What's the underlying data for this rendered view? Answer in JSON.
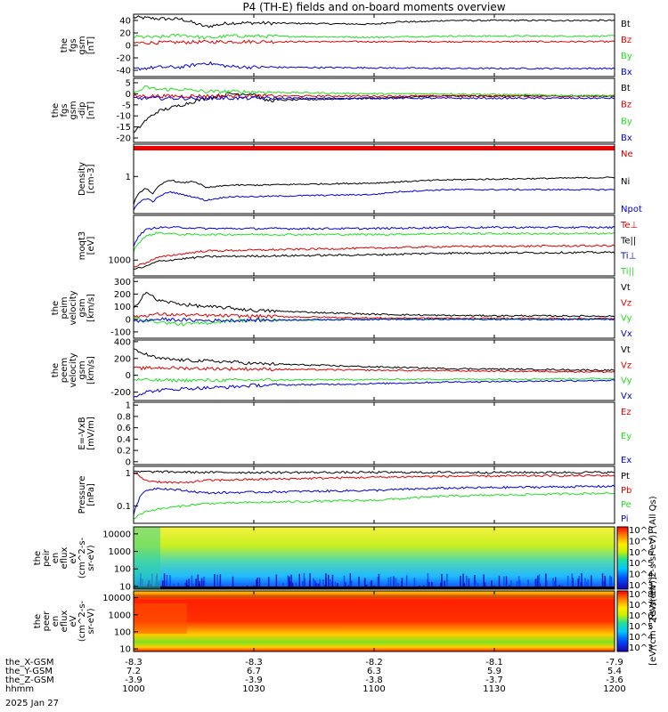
{
  "title": "P4 (TH-E) fields and on-board moments overview",
  "date": "2025 Jan 27",
  "colors": {
    "black": "#000000",
    "red": "#e00000",
    "green": "#22dd22",
    "blue": "#0000dd",
    "ne_red": "#cc0000"
  },
  "chart_data": [
    {
      "type": "line",
      "ylabel": [
        "the",
        "fgs",
        "gsm",
        "[nT]"
      ],
      "ylim": [
        -50,
        50
      ],
      "yticks": [
        40,
        20,
        0,
        -20,
        -40
      ],
      "legend": [
        "Bt",
        "Bz",
        "By",
        "Bx"
      ],
      "series": [
        {
          "name": "Bt",
          "color": "#000000",
          "x": [
            1000,
            1010,
            1020,
            1030,
            1040,
            1050,
            1100,
            1110,
            1120,
            1130,
            1140,
            1150,
            1200
          ],
          "y": [
            45,
            43,
            42,
            30,
            36,
            36,
            34,
            38,
            38,
            40,
            40,
            40,
            40
          ]
        },
        {
          "name": "Bz",
          "color": "#e00000",
          "x": [
            1000,
            1020,
            1040,
            1100,
            1130,
            1200
          ],
          "y": [
            4,
            5,
            6,
            6,
            6,
            6
          ]
        },
        {
          "name": "By",
          "color": "#22dd22",
          "x": [
            1000,
            1010,
            1020,
            1030,
            1040,
            1050,
            1100,
            1130,
            1200
          ],
          "y": [
            14,
            13,
            17,
            12,
            15,
            15,
            13,
            15,
            15
          ]
        },
        {
          "name": "Bx",
          "color": "#0000dd",
          "x": [
            1000,
            1010,
            1020,
            1030,
            1040,
            1050,
            1100,
            1130,
            1200
          ],
          "y": [
            -38,
            -35,
            -35,
            -28,
            -34,
            -35,
            -36,
            -37,
            -37
          ]
        }
      ]
    },
    {
      "type": "line",
      "ylabel": [
        "the",
        "fgs",
        "gsm",
        "-dip",
        "[nT]"
      ],
      "ylim": [
        -22,
        7
      ],
      "yticks": [
        5,
        0,
        -5,
        -10,
        -15,
        -20
      ],
      "legend": [
        "Bt",
        "Bz",
        "By",
        "Bx"
      ],
      "series": [
        {
          "name": "Bt",
          "color": "#000000",
          "x": [
            1000,
            1005,
            1010,
            1020,
            1030,
            1040,
            1050,
            1055,
            1100,
            1130,
            1200
          ],
          "y": [
            -18,
            -12,
            -8,
            -5,
            -2,
            0,
            0,
            -3,
            -2,
            -1,
            -1
          ]
        },
        {
          "name": "Bz",
          "color": "#e00000",
          "x": [
            1000,
            1010,
            1030,
            1100,
            1200
          ],
          "y": [
            -1,
            -1,
            -1,
            -1,
            -1
          ]
        },
        {
          "name": "By",
          "color": "#22dd22",
          "x": [
            1000,
            1005,
            1010,
            1020,
            1030,
            1040,
            1100,
            1130,
            1200
          ],
          "y": [
            0,
            3,
            2,
            2,
            1,
            1,
            0,
            0,
            -1
          ]
        },
        {
          "name": "Bx",
          "color": "#0000dd",
          "x": [
            1000,
            1030,
            1100,
            1200
          ],
          "y": [
            -2,
            -2,
            -2,
            -2
          ]
        }
      ]
    },
    {
      "type": "line",
      "ylabel": [
        "Density",
        "[cm-3]"
      ],
      "yscale": "log",
      "ylim": [
        0.02,
        30
      ],
      "yticks": [
        1
      ],
      "legend": [
        "Ne",
        "Ni",
        "Npot"
      ],
      "series": [
        {
          "name": "Ne",
          "color": "#cc0000",
          "x": [
            1000,
            1100,
            1200
          ],
          "y": [
            20,
            20,
            20
          ]
        },
        {
          "name": "Ni",
          "color": "#000000",
          "x": [
            1000,
            1005,
            1008,
            1015,
            1020,
            1025,
            1030,
            1040,
            1050,
            1100,
            1130,
            1200
          ],
          "y": [
            0.05,
            0.3,
            0.15,
            0.7,
            0.5,
            0.6,
            0.3,
            0.4,
            0.4,
            0.5,
            0.7,
            0.9
          ]
        },
        {
          "name": "Npot",
          "color": "#0000dd",
          "x": [
            1000,
            1005,
            1008,
            1015,
            1020,
            1030,
            1040,
            1050,
            1100,
            1110,
            1130,
            1200
          ],
          "y": [
            0.03,
            0.1,
            0.07,
            0.2,
            0.15,
            0.08,
            0.12,
            0.12,
            0.15,
            0.2,
            0.25,
            0.25
          ]
        }
      ]
    },
    {
      "type": "line",
      "ylabel": [
        "moqt3",
        "[eV]"
      ],
      "yscale": "log",
      "ylim": [
        300,
        30000
      ],
      "yticks": [
        1000
      ],
      "legend": [
        "Te⊥",
        "Te||",
        "Ti⊥",
        "Ti||"
      ],
      "series": [
        {
          "name": "Te⊥",
          "color": "#e00000",
          "x": [
            1000,
            1005,
            1010,
            1020,
            1030,
            1100,
            1130,
            1200
          ],
          "y": [
            600,
            800,
            1200,
            1600,
            2000,
            2500,
            2800,
            3000
          ]
        },
        {
          "name": "Te||",
          "color": "#000000",
          "x": [
            1000,
            1005,
            1010,
            1020,
            1030,
            1100,
            1130,
            1200
          ],
          "y": [
            500,
            600,
            900,
            1100,
            1300,
            1500,
            1700,
            1800
          ]
        },
        {
          "name": "Ti⊥",
          "color": "#0000dd",
          "x": [
            1000,
            1005,
            1010,
            1020,
            1030,
            1100,
            1130,
            1200
          ],
          "y": [
            3000,
            10000,
            12000,
            12000,
            11000,
            11000,
            12000,
            12000
          ]
        },
        {
          "name": "Ti||",
          "color": "#22dd22",
          "x": [
            1000,
            1005,
            1010,
            1020,
            1030,
            1100,
            1130,
            1200
          ],
          "y": [
            2000,
            6000,
            8000,
            7000,
            7000,
            7000,
            7500,
            7500
          ]
        }
      ]
    },
    {
      "type": "line",
      "ylabel": [
        "the",
        "peim",
        "velocity",
        "gsm",
        "[km/s]"
      ],
      "ylim": [
        -150,
        330
      ],
      "yticks": [
        300,
        200,
        100,
        0,
        -100
      ],
      "legend": [
        "Vt",
        "Vz",
        "Vy",
        "Vx"
      ],
      "series": [
        {
          "name": "Vt",
          "color": "#000000",
          "x": [
            1000,
            1005,
            1010,
            1020,
            1030,
            1040,
            1050,
            1100,
            1130,
            1200
          ],
          "y": [
            80,
            220,
            150,
            120,
            100,
            90,
            70,
            40,
            30,
            25
          ]
        },
        {
          "name": "Vz",
          "color": "#e00000",
          "x": [
            1000,
            1010,
            1030,
            1100,
            1200
          ],
          "y": [
            20,
            40,
            30,
            10,
            5
          ]
        },
        {
          "name": "Vy",
          "color": "#22dd22",
          "x": [
            1000,
            1010,
            1020,
            1030,
            1040,
            1100,
            1200
          ],
          "y": [
            10,
            -20,
            -40,
            -30,
            -10,
            0,
            0
          ]
        },
        {
          "name": "Vx",
          "color": "#0000dd",
          "x": [
            1000,
            1010,
            1030,
            1100,
            1200
          ],
          "y": [
            -20,
            0,
            -10,
            0,
            0
          ]
        }
      ]
    },
    {
      "type": "line",
      "ylabel": [
        "the",
        "peem",
        "velocity",
        "gsm",
        "[km/s]"
      ],
      "ylim": [
        -300,
        420
      ],
      "yticks": [
        400,
        200,
        0,
        -200
      ],
      "legend": [
        "Vt",
        "Vz",
        "Vy",
        "Vx"
      ],
      "series": [
        {
          "name": "Vt",
          "color": "#000000",
          "x": [
            1000,
            1005,
            1010,
            1020,
            1030,
            1040,
            1050,
            1100,
            1130,
            1200
          ],
          "y": [
            300,
            250,
            200,
            180,
            170,
            160,
            140,
            100,
            80,
            60
          ]
        },
        {
          "name": "Vz",
          "color": "#e00000",
          "x": [
            1000,
            1010,
            1030,
            1100,
            1200
          ],
          "y": [
            80,
            90,
            80,
            60,
            40
          ]
        },
        {
          "name": "Vy",
          "color": "#22dd22",
          "x": [
            1000,
            1010,
            1030,
            1100,
            1200
          ],
          "y": [
            -50,
            -60,
            -60,
            -50,
            -40
          ]
        },
        {
          "name": "Vx",
          "color": "#0000dd",
          "x": [
            1000,
            1005,
            1010,
            1020,
            1030,
            1040,
            1050,
            1100,
            1130,
            1200
          ],
          "y": [
            -250,
            -200,
            -180,
            -160,
            -150,
            -140,
            -120,
            -100,
            -80,
            -60
          ]
        }
      ]
    },
    {
      "type": "line",
      "ylabel": [
        "E=-VxB",
        "[mV/m]"
      ],
      "ylim": [
        -0.05,
        1.05
      ],
      "yticks": [
        1.0,
        0.8,
        0.6,
        0.4,
        0.2,
        0.0
      ],
      "legend": [
        "Ez",
        "Ey",
        "Ex"
      ],
      "series": []
    },
    {
      "type": "line",
      "ylabel": [
        "Pressure",
        "[nPa]"
      ],
      "yscale": "log",
      "ylim": [
        0.03,
        1.6
      ],
      "yticks": [
        1.0,
        0.1
      ],
      "legend": [
        "Pt",
        "Pb",
        "Pe",
        "Pi"
      ],
      "series": [
        {
          "name": "Pt",
          "color": "#000000",
          "x": [
            1000,
            1010,
            1030,
            1100,
            1200
          ],
          "y": [
            1.1,
            1.1,
            1.05,
            1.05,
            1.05
          ]
        },
        {
          "name": "Pb",
          "color": "#e00000",
          "x": [
            1000,
            1005,
            1010,
            1020,
            1030,
            1100,
            1130,
            1200
          ],
          "y": [
            1.0,
            0.6,
            0.55,
            0.5,
            0.6,
            0.75,
            0.8,
            0.85
          ]
        },
        {
          "name": "Pe",
          "color": "#22dd22",
          "x": [
            1000,
            1005,
            1010,
            1020,
            1030,
            1100,
            1130,
            1200
          ],
          "y": [
            0.04,
            0.07,
            0.08,
            0.1,
            0.12,
            0.15,
            0.2,
            0.25
          ]
        },
        {
          "name": "Pi",
          "color": "#0000dd",
          "x": [
            1000,
            1005,
            1010,
            1020,
            1030,
            1100,
            1130,
            1200
          ],
          "y": [
            0.05,
            0.3,
            0.35,
            0.3,
            0.25,
            0.3,
            0.35,
            0.4
          ]
        }
      ]
    },
    {
      "type": "heatmap",
      "ylabel": [
        "the",
        "peir",
        "en",
        "eflux",
        "eV",
        "(cm^2-s-",
        "sr-eV)"
      ],
      "yscale": "log",
      "ylim": [
        7,
        25000
      ],
      "yticks": [
        10000,
        1000,
        100,
        10
      ],
      "colorbar": {
        "label": "[eV/(cm^2-s-sr-eV)] (All Qs)",
        "ticks": [
          "10^8",
          "10^7",
          "10^6",
          "10^5",
          "10^4",
          "10^3"
        ]
      }
    },
    {
      "type": "heatmap",
      "ylabel": [
        "the",
        "peer",
        "en",
        "eflux",
        "eV",
        "(cm^2-s-",
        "sr-eV)"
      ],
      "yscale": "log",
      "ylim": [
        7,
        25000
      ],
      "yticks": [
        10000,
        1000,
        100,
        10
      ],
      "colorbar": {
        "label": "[eV/(cm^2-s-sr-eV)]",
        "ticks": [
          "10^8",
          "10^7",
          "10^6",
          "10^5",
          "10^4",
          "10^3"
        ]
      }
    }
  ],
  "xaxis": {
    "range": [
      1000,
      1200
    ],
    "rows": [
      {
        "label": "the_X-GSM",
        "values": [
          "-8.3",
          "-8.3",
          "-8.2",
          "-8.1",
          "-7.9"
        ]
      },
      {
        "label": "the_Y-GSM",
        "values": [
          "7.2",
          "6.7",
          "6.3",
          "5.9",
          "5.4"
        ]
      },
      {
        "label": "the_Z-GSM",
        "values": [
          "-3.9",
          "-3.9",
          "-3.8",
          "-3.7",
          "-3.6"
        ]
      },
      {
        "label": "hhmm",
        "values": [
          "1000",
          "1030",
          "1100",
          "1130",
          "1200"
        ]
      }
    ]
  }
}
